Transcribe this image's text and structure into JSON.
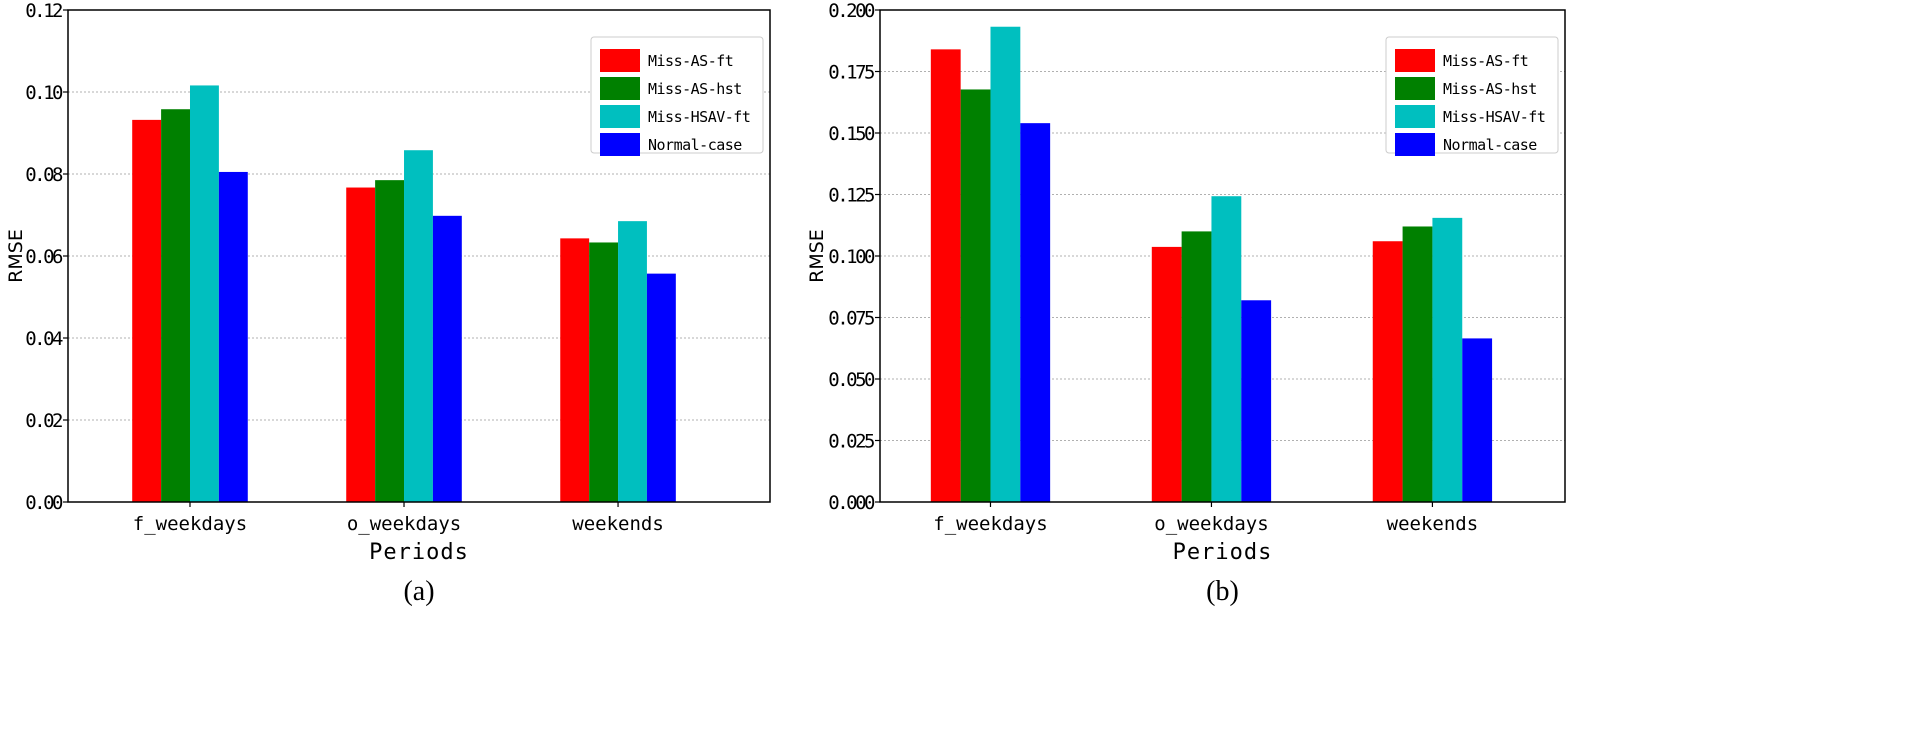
{
  "chart_data": [
    {
      "type": "bar",
      "caption": "(a)",
      "xlabel": "Periods",
      "ylabel": "RMSE",
      "categories": [
        "f_weekdays",
        "o_weekdays",
        "weekends"
      ],
      "ylim": [
        0,
        0.12
      ],
      "yticks": [
        "0.00",
        "0.02",
        "0.04",
        "0.06",
        "0.08",
        "0.10",
        "0.12"
      ],
      "grid": "y-dotted",
      "legend_position": "top-right",
      "series": [
        {
          "name": "Miss-AS-ft",
          "color": "#ff0000",
          "values": [
            0.0932,
            0.0767,
            0.0643
          ]
        },
        {
          "name": "Miss-AS-hst",
          "color": "#008000",
          "values": [
            0.0958,
            0.0785,
            0.0633
          ]
        },
        {
          "name": "Miss-HSAV-ft",
          "color": "#00bfbf",
          "values": [
            0.1016,
            0.0858,
            0.0685
          ]
        },
        {
          "name": "Normal-case",
          "color": "#0000ff",
          "values": [
            0.0805,
            0.0698,
            0.0557
          ]
        }
      ]
    },
    {
      "type": "bar",
      "caption": "(b)",
      "xlabel": "Periods",
      "ylabel": "RMSE",
      "categories": [
        "f_weekdays",
        "o_weekdays",
        "weekends"
      ],
      "ylim": [
        0,
        0.2
      ],
      "yticks": [
        "0.000",
        "0.025",
        "0.050",
        "0.075",
        "0.100",
        "0.125",
        "0.150",
        "0.175",
        "0.200"
      ],
      "grid": "y-dotted",
      "legend_position": "top-right",
      "series": [
        {
          "name": "Miss-AS-ft",
          "color": "#ff0000",
          "values": [
            0.184,
            0.1037,
            0.106
          ]
        },
        {
          "name": "Miss-AS-hst",
          "color": "#008000",
          "values": [
            0.1677,
            0.11,
            0.112
          ]
        },
        {
          "name": "Miss-HSAV-ft",
          "color": "#00bfbf",
          "values": [
            0.1932,
            0.1243,
            0.1155
          ]
        },
        {
          "name": "Normal-case",
          "color": "#0000ff",
          "values": [
            0.154,
            0.082,
            0.0665
          ]
        }
      ]
    }
  ]
}
